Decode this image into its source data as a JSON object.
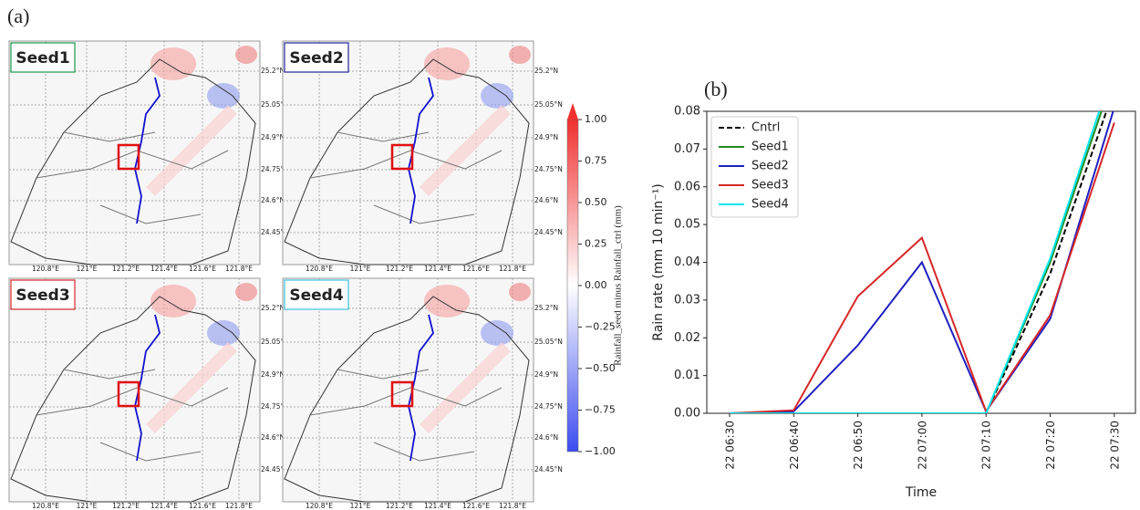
{
  "panel_a": {
    "label": "(a)",
    "maps": [
      {
        "title": "Seed1",
        "color": "#1a9a50"
      },
      {
        "title": "Seed2",
        "color": "#23239a"
      },
      {
        "title": "Seed3",
        "color": "#d62728"
      },
      {
        "title": "Seed4",
        "color": "#3ec0e0"
      }
    ],
    "lat_labels": [
      "25.2°N",
      "25.05°N",
      "24.9°N",
      "24.75°N",
      "24.6°N",
      "24.45°N"
    ],
    "lon_labels": [
      "120.8°E",
      "121°E",
      "121.2°E",
      "121.4°E",
      "121.6°E",
      "121.8°E"
    ],
    "colorbar": {
      "label": "Rainfall_seed minus Rainfall_ctrl  (mm)",
      "lim": [
        -1,
        1
      ],
      "ticks": [
        {
          "value": 1,
          "label": "1.00"
        },
        {
          "value": 0.75,
          "label": "0.75"
        },
        {
          "value": 0.5,
          "label": "0.50"
        },
        {
          "value": 0.25,
          "label": "0.25"
        },
        {
          "value": 0,
          "label": "0.00"
        },
        {
          "value": -0.25,
          "label": "−0.25"
        },
        {
          "value": -0.5,
          "label": "−0.50"
        },
        {
          "value": -0.75,
          "label": "−0.75"
        },
        {
          "value": -1,
          "label": "−1.00"
        }
      ]
    }
  },
  "chart_data": {
    "type": "line",
    "panel_label": "(b)",
    "x_label": "Time",
    "y_label": "Rain rate (mm 10 min⁻¹)",
    "categories": [
      "22 06:30",
      "22 06:40",
      "22 06:50",
      "22 07:00",
      "22 07:10",
      "22 07:20",
      "22 07:30"
    ],
    "ylim": [
      0,
      0.08
    ],
    "yticks": [
      {
        "value": 0,
        "label": "0.00"
      },
      {
        "value": 0.01,
        "label": "0.01"
      },
      {
        "value": 0.02,
        "label": "0.02"
      },
      {
        "value": 0.03,
        "label": "0.03"
      },
      {
        "value": 0.04,
        "label": "0.04"
      },
      {
        "value": 0.05,
        "label": "0.05"
      },
      {
        "value": 0.06,
        "label": "0.06"
      },
      {
        "value": 0.07,
        "label": "0.07"
      },
      {
        "value": 0.08,
        "label": "0.08"
      }
    ],
    "legend": "upper left",
    "series": [
      {
        "name": "Cntrl",
        "color": "#000000",
        "linestyle": "dashed",
        "values": [
          0,
          0,
          0,
          0,
          0,
          0.037,
          0.086
        ]
      },
      {
        "name": "Seed1",
        "color": "#228b22",
        "values": [
          0,
          0,
          0,
          0,
          0,
          0.04,
          0.09
        ]
      },
      {
        "name": "Seed2",
        "color": "#2020c0",
        "values": [
          0,
          0.0005,
          0.018,
          0.04,
          0.0005,
          0.025,
          0.081
        ]
      },
      {
        "name": "Seed3",
        "color": "#d62728",
        "values": [
          0,
          0.0008,
          0.031,
          0.0465,
          0.0005,
          0.026,
          0.077
        ]
      },
      {
        "name": "Seed4",
        "color": "#00e5ee",
        "values": [
          0,
          0,
          0,
          0,
          0,
          0.041,
          0.092
        ]
      }
    ]
  }
}
